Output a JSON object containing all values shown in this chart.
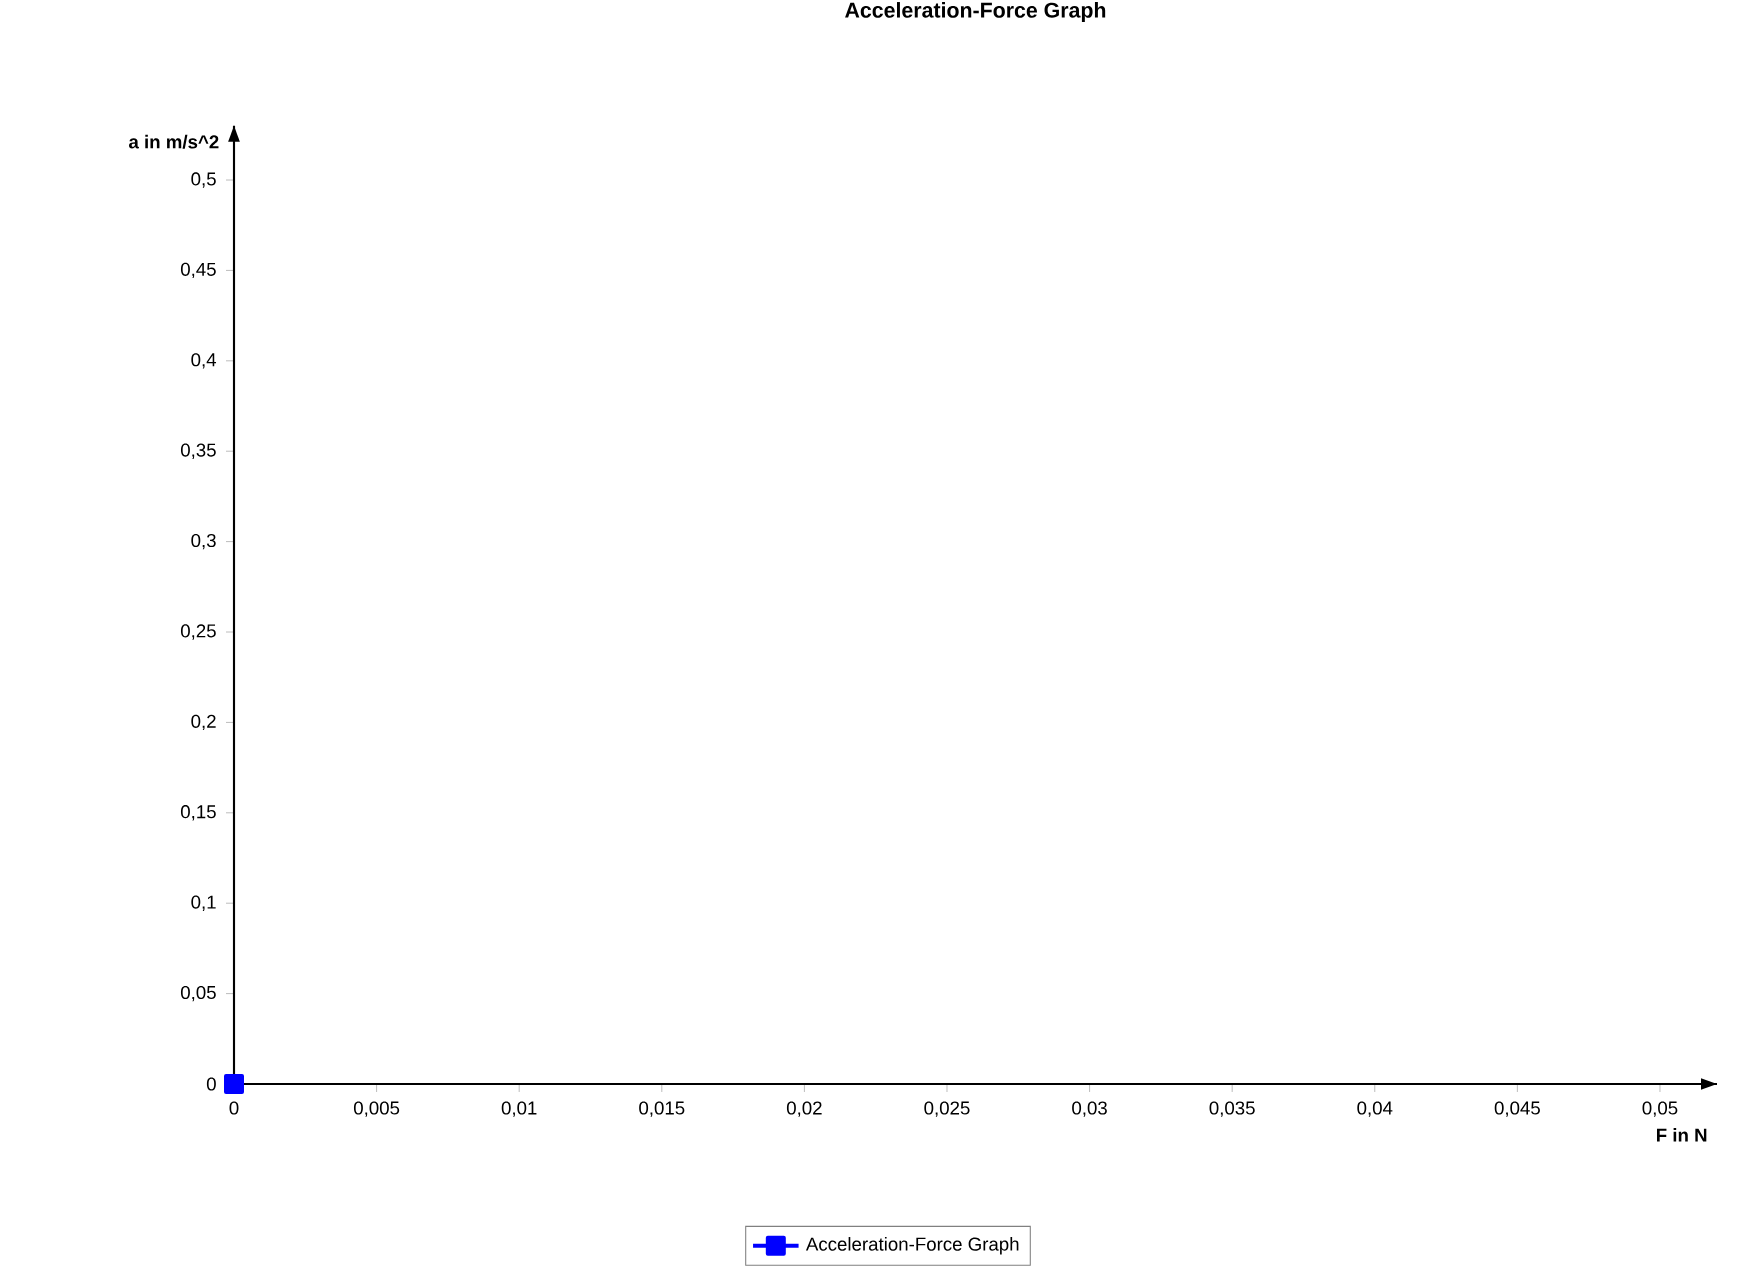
{
  "chart_data": {
    "type": "line",
    "title": "Acceleration-Force Graph",
    "xlabel": "F in N",
    "ylabel": "a in m/s^2",
    "x": [
      0
    ],
    "series": [
      {
        "name": "Acceleration-Force Graph",
        "color": "#0000ff",
        "values": [
          0
        ]
      }
    ],
    "xlim": [
      0,
      0.052
    ],
    "ylim": [
      0,
      0.53
    ],
    "xticks": [
      0,
      {
        "value": 0.005,
        "label": "0,005"
      },
      {
        "value": 0.01,
        "label": "0,01"
      },
      {
        "value": 0.015,
        "label": "0,015"
      },
      {
        "value": 0.02,
        "label": "0,02"
      },
      {
        "value": 0.025,
        "label": "0,025"
      },
      {
        "value": 0.03,
        "label": "0,03"
      },
      {
        "value": 0.035,
        "label": "0,035"
      },
      {
        "value": 0.04,
        "label": "0,04"
      },
      {
        "value": 0.045,
        "label": "0,045"
      },
      {
        "value": 0.05,
        "label": "0,05"
      }
    ],
    "yticks": [
      0,
      {
        "value": 0.05,
        "label": "0,05"
      },
      {
        "value": 0.1,
        "label": "0,1"
      },
      {
        "value": 0.15,
        "label": "0,15"
      },
      {
        "value": 0.2,
        "label": "0,2"
      },
      {
        "value": 0.25,
        "label": "0,25"
      },
      {
        "value": 0.3,
        "label": "0,3"
      },
      {
        "value": 0.35,
        "label": "0,35"
      },
      {
        "value": 0.4,
        "label": "0,4"
      },
      {
        "value": 0.45,
        "label": "0,45"
      },
      {
        "value": 0.5,
        "label": "0,5"
      }
    ],
    "legend": "bottom",
    "marker": "square"
  }
}
